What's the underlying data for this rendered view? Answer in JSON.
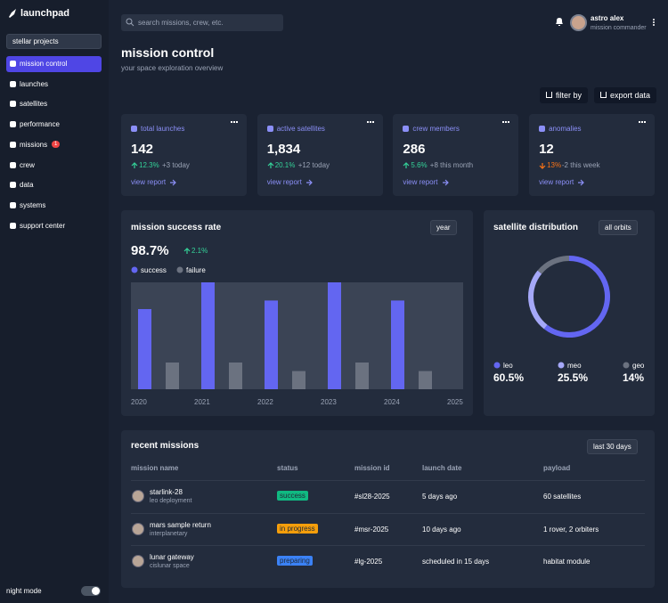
{
  "sidebar": {
    "brand": "launchpad",
    "project": "stellar projects",
    "nav": [
      {
        "label": "mission control",
        "active": true
      },
      {
        "label": "launches"
      },
      {
        "label": "satellites"
      },
      {
        "label": "performance"
      },
      {
        "label": "missions",
        "badge": "1"
      },
      {
        "label": "crew"
      },
      {
        "label": "data"
      },
      {
        "label": "systems"
      },
      {
        "label": "support center"
      }
    ],
    "night_mode": "night mode"
  },
  "topbar": {
    "search": "search missions, crew, etc.",
    "user": "astro alex",
    "role": "mission commander"
  },
  "header": {
    "title": "mission control",
    "subtitle": "your space exploration overview",
    "buttons": [
      "filter by",
      "export data"
    ]
  },
  "stats": [
    {
      "label": "total launches",
      "value": "142",
      "change": "12.3%",
      "trend": "up",
      "note": "+3 today",
      "link": "view report"
    },
    {
      "label": "active satellites",
      "value": "1,834",
      "change": "20.1%",
      "trend": "up",
      "note": "+12 today",
      "link": "view report"
    },
    {
      "label": "crew members",
      "value": "286",
      "change": "5.6%",
      "trend": "up",
      "note": "+8 this month",
      "link": "view report"
    },
    {
      "label": "anomalies",
      "value": "12",
      "change": "13%",
      "trend": "down",
      "note": "-2 this week",
      "link": "view report"
    }
  ],
  "success_chart": {
    "type": "bar",
    "title": "mission success rate",
    "select": "year",
    "value": "98.7%",
    "change": "2.1%",
    "categories": [
      "2020",
      "2021",
      "2022",
      "2023",
      "2024",
      "2025"
    ],
    "series": [
      {
        "name": "success",
        "color": "#6366f1",
        "values": [
          75,
          100,
          83,
          100,
          83,
          null
        ]
      },
      {
        "name": "failure",
        "color": "#6b7280",
        "values": [
          25,
          25,
          17,
          25,
          17,
          null
        ]
      }
    ],
    "ylim": [
      0,
      100
    ]
  },
  "satellite_chart": {
    "type": "pie",
    "title": "satellite distribution",
    "select": "all orbits",
    "categories": [
      "leo",
      "meo",
      "geo"
    ],
    "values": [
      60.5,
      25.5,
      14
    ],
    "value_labels": [
      "60.5%",
      "25.5%",
      "14%"
    ],
    "colors": [
      "#6366f1",
      "#a5a8f8",
      "#6b7280"
    ]
  },
  "missions": {
    "title": "recent missions",
    "select": "last 30 days",
    "columns": [
      "mission name",
      "status",
      "mission id",
      "launch date",
      "payload"
    ],
    "rows": [
      {
        "name": "starlink-28",
        "sub": "leo deployment",
        "status": "success",
        "color": "#10b981",
        "id": "#sl28-2025",
        "date": "5 days ago",
        "payload": "60 satellites"
      },
      {
        "name": "mars sample return",
        "sub": "interplanetary",
        "status": "in progress",
        "color": "#f59e0b",
        "id": "#msr-2025",
        "date": "10 days ago",
        "payload": "1 rover, 2 orbiters"
      },
      {
        "name": "lunar gateway",
        "sub": "cislunar space",
        "status": "preparing",
        "color": "#3b82f6",
        "id": "#lg-2025",
        "date": "scheduled in 15 days",
        "payload": "habitat module"
      }
    ]
  }
}
